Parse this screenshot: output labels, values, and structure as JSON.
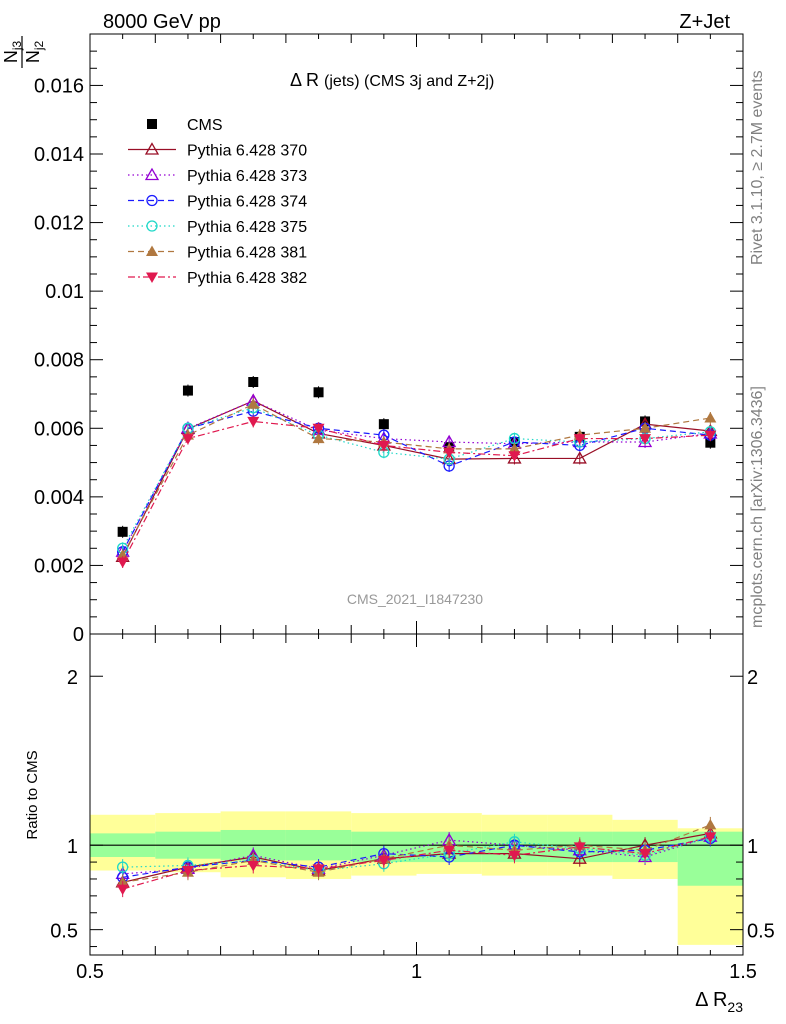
{
  "header": {
    "left": "8000 GeV pp",
    "right": "Z+Jet"
  },
  "side_notes": {
    "rivet": "Rivet 3.1.10, ≥ 2.7M events",
    "mcplots": "mcplots.cern.ch [arXiv:1306.3436]"
  },
  "watermark": "CMS_2021_I1847230",
  "colors": {
    "cms": "#000000",
    "band_inner": "#99ff99",
    "band_outer": "#ffff99"
  },
  "chart_data": [
    {
      "type": "line",
      "title_main": "Δ R",
      "title_rest": "(jets) (CMS 3j and Z+2j)",
      "ylabel_num": "N",
      "ylabel_num_sub": "j3",
      "ylabel_den": "N",
      "ylabel_den_sub": "j2",
      "xlim": [
        0.5,
        1.5
      ],
      "ylim": [
        0,
        0.0175
      ],
      "yticks": [
        0,
        0.002,
        0.004,
        0.006,
        0.008,
        0.01,
        0.012,
        0.014,
        0.016
      ],
      "ytick_labels": [
        "0",
        "0.002",
        "0.004",
        "0.006",
        "0.008",
        "0.01",
        "0.012",
        "0.014",
        "0.016"
      ],
      "legend_position": "top-left",
      "x": [
        0.55,
        0.65,
        0.75,
        0.85,
        0.95,
        1.05,
        1.15,
        1.25,
        1.35,
        1.45
      ],
      "series": [
        {
          "name": "CMS",
          "color": "#000000",
          "marker": "square",
          "line": "none",
          "values": [
            0.00298,
            0.0071,
            0.00735,
            0.00705,
            0.00612,
            0.00545,
            0.0056,
            0.00575,
            0.0062,
            0.00558
          ]
        },
        {
          "name": "Pythia 6.428 370",
          "color": "#990f26",
          "marker": "triangle-open",
          "line": "solid",
          "values": [
            0.00225,
            0.00598,
            0.0068,
            0.00585,
            0.0055,
            0.0051,
            0.00512,
            0.00512,
            0.00612,
            0.00592
          ]
        },
        {
          "name": "Pythia 6.428 373",
          "color": "#9400d3",
          "marker": "triangle-open",
          "line": "dotted",
          "values": [
            0.0024,
            0.006,
            0.0068,
            0.00595,
            0.0057,
            0.0056,
            0.00555,
            0.0056,
            0.0056,
            0.00585
          ]
        },
        {
          "name": "Pythia 6.428 374",
          "color": "#1a1aff",
          "marker": "circle-open",
          "line": "dashed",
          "values": [
            0.0024,
            0.006,
            0.0065,
            0.006,
            0.0058,
            0.0049,
            0.0056,
            0.0055,
            0.006,
            0.0058
          ]
        },
        {
          "name": "Pythia 6.428 375",
          "color": "#1fd8c8",
          "marker": "circle-open",
          "line": "dotted",
          "values": [
            0.0025,
            0.006,
            0.0066,
            0.0058,
            0.0053,
            0.0051,
            0.0057,
            0.0056,
            0.0057,
            0.0059
          ]
        },
        {
          "name": "Pythia 6.428 381",
          "color": "#b07840",
          "marker": "triangle-filled",
          "line": "dashed",
          "values": [
            0.0023,
            0.0058,
            0.0067,
            0.0057,
            0.0056,
            0.0054,
            0.0054,
            0.0058,
            0.006,
            0.0063
          ]
        },
        {
          "name": "Pythia 6.428 382",
          "color": "#e0194f",
          "marker": "triangle-down-filled",
          "line": "dashdot",
          "values": [
            0.0021,
            0.0057,
            0.0062,
            0.006,
            0.0055,
            0.0053,
            0.0052,
            0.0057,
            0.0057,
            0.0058
          ]
        }
      ]
    },
    {
      "type": "line",
      "ylabel": "Ratio to CMS",
      "xlabel": "Δ R",
      "xlabel_sub": "23",
      "xlim": [
        0.5,
        1.5
      ],
      "ylim": [
        0.35,
        2.25
      ],
      "xticks": [
        0.5,
        1,
        1.5
      ],
      "xtick_labels": [
        "0.5",
        "1",
        "1.5"
      ],
      "yticks": [
        0.5,
        1,
        2
      ],
      "ytick_labels": [
        "0.5",
        "1",
        "2"
      ],
      "reference_line": 1,
      "x": [
        0.55,
        0.65,
        0.75,
        0.85,
        0.95,
        1.05,
        1.15,
        1.25,
        1.35,
        1.45
      ],
      "band_x_edges": [
        0.5,
        0.6,
        0.7,
        0.8,
        0.9,
        1.0,
        1.1,
        1.2,
        1.3,
        1.4,
        1.5
      ],
      "band_inner": [
        [
          0.93,
          1.07
        ],
        [
          0.92,
          1.08
        ],
        [
          0.91,
          1.09
        ],
        [
          0.91,
          1.09
        ],
        [
          0.9,
          1.08
        ],
        [
          0.9,
          1.08
        ],
        [
          0.9,
          1.08
        ],
        [
          0.9,
          1.08
        ],
        [
          0.9,
          1.08
        ],
        [
          0.76,
          1.08
        ]
      ],
      "band_outer": [
        [
          0.85,
          1.18
        ],
        [
          0.84,
          1.19
        ],
        [
          0.81,
          1.2
        ],
        [
          0.8,
          1.2
        ],
        [
          0.82,
          1.19
        ],
        [
          0.83,
          1.19
        ],
        [
          0.82,
          1.18
        ],
        [
          0.82,
          1.18
        ],
        [
          0.8,
          1.15
        ],
        [
          0.41,
          1.1
        ]
      ],
      "series": [
        {
          "name": "Pythia 6.428 370",
          "color": "#990f26",
          "marker": "triangle-open",
          "line": "solid",
          "values": [
            0.78,
            0.87,
            0.93,
            0.85,
            0.92,
            0.95,
            0.95,
            0.92,
            1.0,
            1.07
          ]
        },
        {
          "name": "Pythia 6.428 373",
          "color": "#9400d3",
          "marker": "triangle-open",
          "line": "dotted",
          "values": [
            0.83,
            0.86,
            0.94,
            0.86,
            0.94,
            1.03,
            1.0,
            0.97,
            0.93,
            1.05
          ]
        },
        {
          "name": "Pythia 6.428 374",
          "color": "#1a1aff",
          "marker": "circle-open",
          "line": "dashed",
          "values": [
            0.81,
            0.87,
            0.91,
            0.87,
            0.95,
            0.93,
            1.0,
            0.96,
            0.97,
            1.04
          ]
        },
        {
          "name": "Pythia 6.428 375",
          "color": "#1fd8c8",
          "marker": "circle-open",
          "line": "dotted",
          "values": [
            0.87,
            0.88,
            0.91,
            0.85,
            0.89,
            0.95,
            1.02,
            0.98,
            0.94,
            1.05
          ]
        },
        {
          "name": "Pythia 6.428 381",
          "color": "#b07840",
          "marker": "triangle-filled",
          "line": "dashed",
          "values": [
            0.78,
            0.84,
            0.91,
            0.84,
            0.92,
            1.0,
            0.97,
            1.0,
            0.97,
            1.12
          ]
        },
        {
          "name": "Pythia 6.428 382",
          "color": "#e0194f",
          "marker": "triangle-down-filled",
          "line": "dashdot",
          "values": [
            0.74,
            0.85,
            0.88,
            0.86,
            0.91,
            0.97,
            0.94,
            0.99,
            0.95,
            1.05
          ]
        }
      ]
    }
  ]
}
